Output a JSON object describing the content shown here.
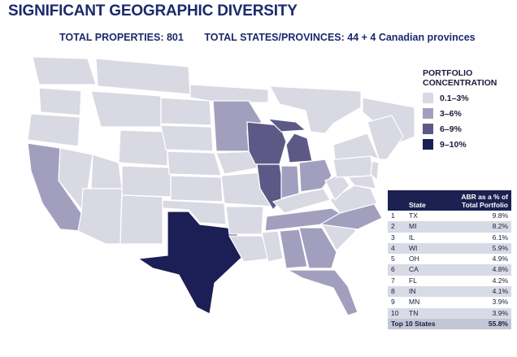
{
  "title": "SIGNIFICANT GEOGRAPHIC DIVERSITY",
  "stats": {
    "total_properties": "TOTAL PROPERTIES: 801",
    "total_states": "TOTAL STATES/PROVINCES: 44 + 4 Canadian provinces"
  },
  "legend": {
    "title": "PORTFOLIO CONCENTRATION",
    "items": [
      {
        "label": "0.1–3%",
        "color": "#d9d9e3"
      },
      {
        "label": "3–6%",
        "color": "#a29fbe"
      },
      {
        "label": "6–9%",
        "color": "#5d5987"
      },
      {
        "label": "9–10%",
        "color": "#1c1f55"
      }
    ]
  },
  "table": {
    "col_state": "State",
    "col_abr": "ABR as a % of Total Portfolio",
    "rows": [
      {
        "rank": "1",
        "state": "TX",
        "value": "9.8%"
      },
      {
        "rank": "2",
        "state": "MI",
        "value": "8.2%"
      },
      {
        "rank": "3",
        "state": "IL",
        "value": "6.1%"
      },
      {
        "rank": "4",
        "state": "WI",
        "value": "5.9%"
      },
      {
        "rank": "5",
        "state": "OH",
        "value": "4.9%"
      },
      {
        "rank": "6",
        "state": "CA",
        "value": "4.8%"
      },
      {
        "rank": "7",
        "state": "FL",
        "value": "4.2%"
      },
      {
        "rank": "8",
        "state": "IN",
        "value": "4.1%"
      },
      {
        "rank": "9",
        "state": "MN",
        "value": "3.9%"
      },
      {
        "rank": "10",
        "state": "TN",
        "value": "3.9%"
      }
    ],
    "footer_label": "Top 10 States",
    "footer_value": "55.8%"
  },
  "map_colors": {
    "base": "#d9d9e3",
    "mid": "#a29fbe",
    "high": "#5d5987",
    "top": "#1c1f55",
    "unshaded": "#ffffff",
    "border": "#ffffff"
  }
}
